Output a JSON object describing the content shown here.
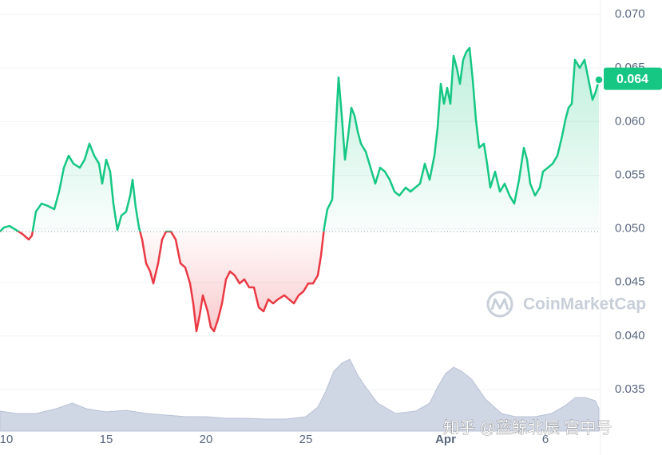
{
  "chart_data": {
    "type": "line",
    "x": [
      9.68,
      9.88,
      10.16,
      10.48,
      10.8,
      11.12,
      11.28,
      11.48,
      11.76,
      12.08,
      12.4,
      12.64,
      12.88,
      13.12,
      13.36,
      13.68,
      13.92,
      14.16,
      14.4,
      14.64,
      14.8,
      15.0,
      15.2,
      15.36,
      15.56,
      15.76,
      16.0,
      16.2,
      16.32,
      16.48,
      16.64,
      16.8,
      17.0,
      17.2,
      17.36,
      17.6,
      17.8,
      18.0,
      18.24,
      18.48,
      18.72,
      18.96,
      19.2,
      19.36,
      19.52,
      19.68,
      19.84,
      20.08,
      20.24,
      20.4,
      20.6,
      20.8,
      21.0,
      21.2,
      21.44,
      21.68,
      21.92,
      22.16,
      22.4,
      22.64,
      22.88,
      23.12,
      23.36,
      23.6,
      23.92,
      24.16,
      24.4,
      24.64,
      24.88,
      25.12,
      25.36,
      25.6,
      25.76,
      25.92,
      26.08,
      26.32,
      26.48,
      26.64,
      26.8,
      26.96,
      27.12,
      27.28,
      27.44,
      27.6,
      27.76,
      28.0,
      28.24,
      28.48,
      28.72,
      28.96,
      29.2,
      29.44,
      29.68,
      30.0,
      30.24,
      30.48,
      30.72,
      30.96,
      31.2,
      31.44,
      31.6,
      31.76,
      31.92,
      32.08,
      32.24,
      32.4,
      32.56,
      32.72,
      32.88,
      33.04,
      33.2,
      33.36,
      33.52,
      33.68,
      33.92,
      34.08,
      34.24,
      34.48,
      34.72,
      34.96,
      35.2,
      35.44,
      35.68,
      35.92,
      36.08,
      36.24,
      36.48,
      36.72,
      36.88,
      37.12,
      37.36,
      37.6,
      37.84,
      38.0,
      38.16,
      38.32,
      38.48,
      38.72,
      38.96,
      39.2,
      39.36,
      39.52,
      39.68
    ],
    "values": [
      0.04974,
      0.05012,
      0.05026,
      0.04989,
      0.04952,
      0.049,
      0.04937,
      0.0516,
      0.05235,
      0.05213,
      0.05183,
      0.05347,
      0.0557,
      0.05682,
      0.05607,
      0.0557,
      0.05645,
      0.05794,
      0.05682,
      0.05607,
      0.05421,
      0.05645,
      0.05533,
      0.05235,
      0.04989,
      0.05123,
      0.0516,
      0.0531,
      0.05458,
      0.05198,
      0.05012,
      0.049,
      0.04677,
      0.04602,
      0.0449,
      0.04677,
      0.049,
      0.04974,
      0.04974,
      0.049,
      0.04677,
      0.04639,
      0.0449,
      0.04304,
      0.04044,
      0.04192,
      0.04379,
      0.0423,
      0.04081,
      0.04044,
      0.04155,
      0.04304,
      0.04528,
      0.04602,
      0.04565,
      0.0449,
      0.04528,
      0.04453,
      0.04453,
      0.04267,
      0.0423,
      0.04341,
      0.04304,
      0.04341,
      0.04379,
      0.04341,
      0.04304,
      0.04379,
      0.04416,
      0.0449,
      0.0449,
      0.04565,
      0.04751,
      0.05012,
      0.05183,
      0.05272,
      0.05868,
      0.06412,
      0.06054,
      0.05645,
      0.05868,
      0.06129,
      0.06054,
      0.05905,
      0.05794,
      0.05719,
      0.0557,
      0.05421,
      0.0557,
      0.05533,
      0.05458,
      0.05347,
      0.0531,
      0.05384,
      0.05347,
      0.05384,
      0.05421,
      0.05607,
      0.05458,
      0.05682,
      0.05943,
      0.06352,
      0.06166,
      0.06315,
      0.06166,
      0.06613,
      0.06501,
      0.06352,
      0.06576,
      0.0665,
      0.06687,
      0.06389,
      0.06017,
      0.05756,
      0.05794,
      0.05607,
      0.05384,
      0.05533,
      0.05347,
      0.05421,
      0.0531,
      0.05235,
      0.05458,
      0.05756,
      0.05645,
      0.05421,
      0.0531,
      0.05384,
      0.05533,
      0.0557,
      0.05607,
      0.05682,
      0.05868,
      0.06017,
      0.06129,
      0.06166,
      0.06576,
      0.06501,
      0.06576,
      0.06352,
      0.06203,
      0.06278,
      0.06389
    ],
    "up_color": "#16c784",
    "down_color": "#ea3943",
    "baseline": 0.04974,
    "current_price": 0.064,
    "xlim": [
      9.68,
      39.76
    ],
    "ylim": [
      0.03113,
      0.07134
    ],
    "xticks": [
      10,
      15,
      20,
      25,
      {
        "value": 32,
        "label": "Apr"
      },
      {
        "value": 37,
        "label": "6"
      }
    ],
    "yticks": [
      0.035,
      {
        "value": 0.04,
        "label": "0.040"
      },
      0.045,
      {
        "value": 0.05,
        "label": "0.050"
      },
      0.055,
      {
        "value": 0.06,
        "label": "0.060"
      },
      0.065,
      {
        "value": 0.07,
        "label": "0.070"
      }
    ],
    "grid": true,
    "volume": {
      "color": "#cfd6e4",
      "vlim": [
        0,
        100
      ],
      "x": [
        9.68,
        10.5,
        11.5,
        12.5,
        13.3,
        14,
        15,
        16,
        17,
        18,
        19,
        20,
        21,
        22,
        23,
        24,
        25,
        25.6,
        26,
        26.4,
        26.8,
        27.2,
        27.6,
        28,
        28.6,
        29.5,
        30.5,
        31.2,
        31.6,
        32,
        32.4,
        32.8,
        33.3,
        34,
        34.8,
        35.5,
        36.5,
        37.3,
        38,
        38.5,
        39,
        39.5,
        39.68
      ],
      "values": [
        25,
        22,
        22,
        28,
        35,
        28,
        24,
        26,
        22,
        20,
        18,
        18,
        16,
        16,
        15,
        15,
        18,
        30,
        50,
        75,
        85,
        90,
        70,
        55,
        35,
        22,
        25,
        35,
        55,
        72,
        80,
        75,
        65,
        40,
        22,
        18,
        18,
        22,
        32,
        42,
        42,
        38,
        28
      ]
    },
    "watermark": "CoinMarketCap",
    "credit": "知乎 @蓝鲸北辰 宫中号"
  }
}
